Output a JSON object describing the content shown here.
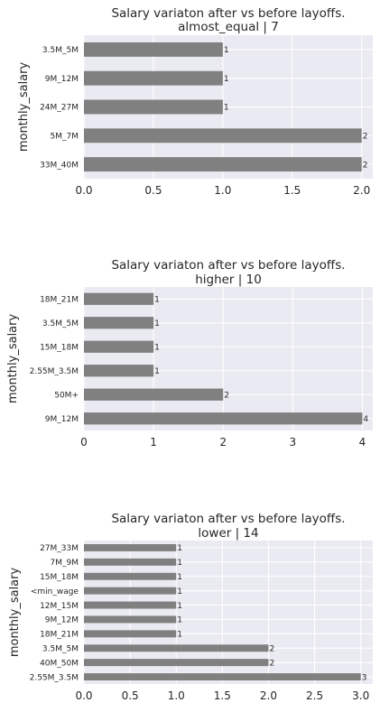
{
  "chart_data": [
    {
      "type": "bar",
      "orientation": "horizontal",
      "title": "Salary variaton after vs before layoffs.",
      "subtitle": "almost_equal | 7",
      "ylabel": "monthly_salary",
      "xlabel": "",
      "categories": [
        "3.5M_5M",
        "9M_12M",
        "24M_27M",
        "5M_7M",
        "33M_40M"
      ],
      "values": [
        1,
        1,
        1,
        2,
        2
      ],
      "value_labels": [
        "1",
        "1",
        "1",
        "2",
        "2"
      ],
      "xlim": [
        0,
        2.08
      ],
      "xticks": [
        "0.0",
        "0.5",
        "1.0",
        "1.5",
        "2.0"
      ],
      "grid": true,
      "bar_color": "#808080",
      "background_color": "#EAEAF2"
    },
    {
      "type": "bar",
      "orientation": "horizontal",
      "title": "Salary variaton after vs before layoffs.",
      "subtitle": "higher | 10",
      "ylabel": "monthly_salary",
      "xlabel": "",
      "categories": [
        "18M_21M",
        "3.5M_5M",
        "15M_18M",
        "2.55M_3.5M",
        "50M+",
        "9M_12M"
      ],
      "values": [
        1,
        1,
        1,
        1,
        2,
        4
      ],
      "value_labels": [
        "1",
        "1",
        "1",
        "1",
        "2",
        "4"
      ],
      "xlim": [
        0,
        4.15
      ],
      "xticks": [
        "0",
        "1",
        "2",
        "3",
        "4"
      ],
      "grid": true,
      "bar_color": "#808080",
      "background_color": "#EAEAF2"
    },
    {
      "type": "bar",
      "orientation": "horizontal",
      "title": "Salary variaton after vs before layoffs.",
      "subtitle": "lower | 14",
      "ylabel": "monthly_salary",
      "xlabel": "",
      "categories": [
        "27M_33M",
        "7M_9M",
        "15M_18M",
        "<min_wage",
        "12M_15M",
        "9M_12M",
        "18M_21M",
        "3.5M_5M",
        "40M_50M",
        "2.55M_3.5M"
      ],
      "values": [
        1,
        1,
        1,
        1,
        1,
        1,
        1,
        2,
        2,
        3
      ],
      "value_labels": [
        "1",
        "1",
        "1",
        "1",
        "1",
        "1",
        "1",
        "2",
        "2",
        "3"
      ],
      "xlim": [
        0,
        3.13
      ],
      "xticks": [
        "0.0",
        "0.5",
        "1.0",
        "1.5",
        "2.0",
        "2.5",
        "3.0"
      ],
      "grid": true,
      "bar_color": "#808080",
      "background_color": "#EAEAF2"
    }
  ]
}
